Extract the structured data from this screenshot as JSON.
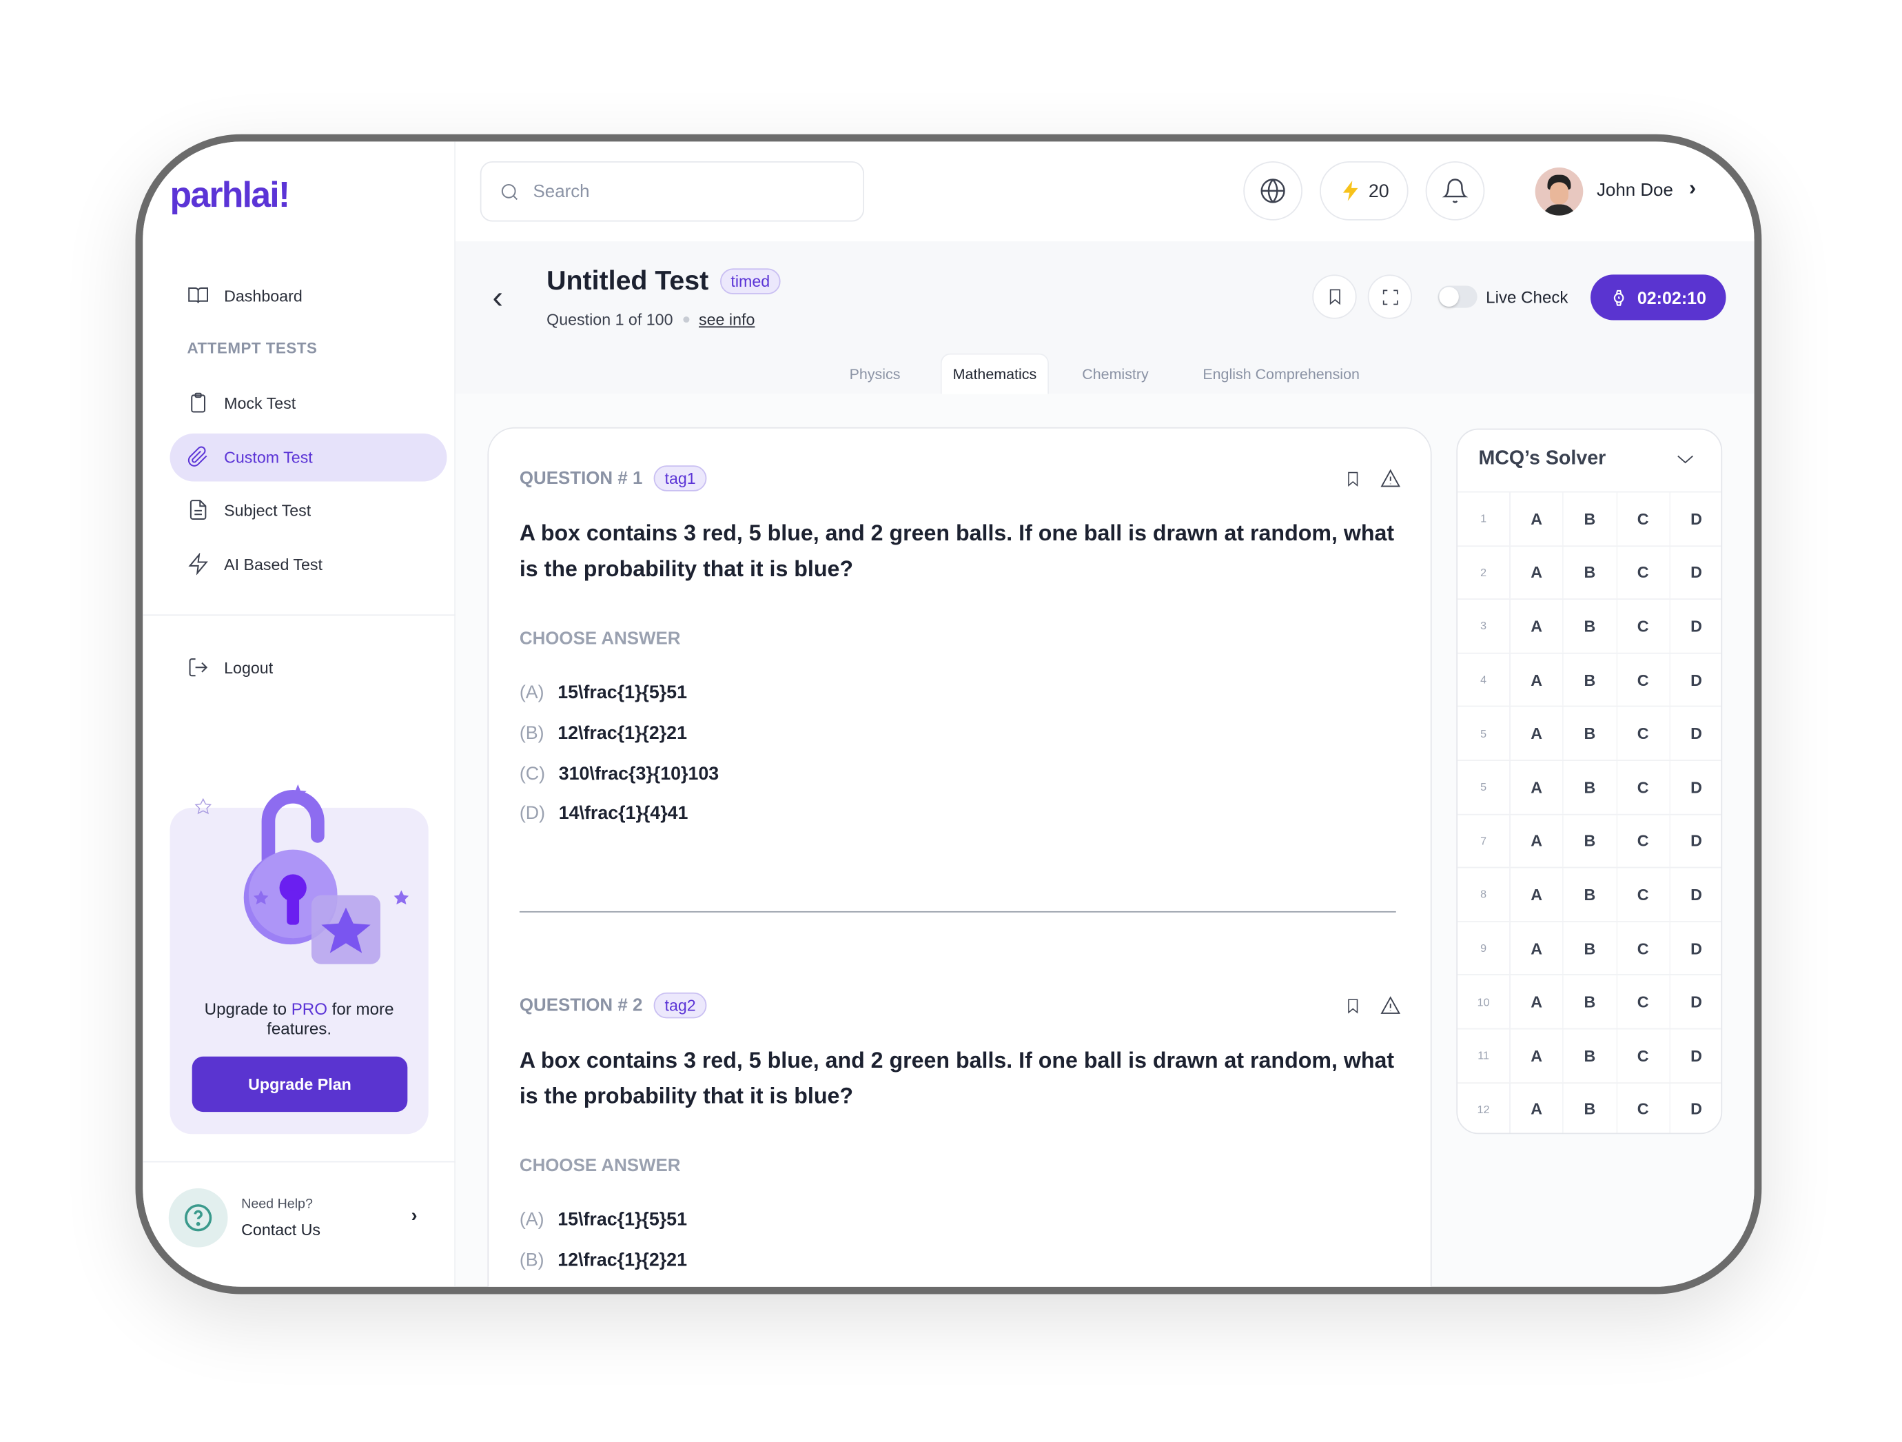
{
  "brand": {
    "logo": "parhlai!",
    "accent": "#5a34d0"
  },
  "sidebar": {
    "items": [
      {
        "label": "Dashboard",
        "icon": "book-open-icon"
      },
      {
        "label": "Mock Test",
        "icon": "clipboard-icon"
      },
      {
        "label": "Custom Test",
        "icon": "paperclip-icon",
        "active": true
      },
      {
        "label": "Subject Test",
        "icon": "document-icon"
      },
      {
        "label": "AI Based Test",
        "icon": "lightning-icon"
      }
    ],
    "section_label": "ATTEMPT TESTS",
    "logout": "Logout",
    "promo": {
      "text_before": "Upgrade to ",
      "text_pro": "PRO",
      "text_after": " for more features.",
      "button": "Upgrade Plan"
    },
    "help": {
      "line1": "Need Help?",
      "line2": "Contact Us"
    }
  },
  "topbar": {
    "search_placeholder": "Search",
    "points": "20",
    "user_name": "John Doe"
  },
  "test": {
    "title": "Untitled Test",
    "badge": "timed",
    "progress": "Question 1 of 100",
    "see_info": "see info",
    "live_check": "Live Check",
    "live_check_on": false,
    "timer": "02:02:10",
    "tabs": [
      "Physics",
      "Mathematics",
      "Chemistry",
      "English Comprehension"
    ],
    "active_tab": "Mathematics"
  },
  "questions": [
    {
      "label": "QUESTION # 1",
      "tag": "tag1",
      "text": "A box contains 3 red, 5 blue, and 2 green balls. If one ball is drawn at random, what is the probability that it is blue?",
      "choose": "CHOOSE ANSWER",
      "options": [
        {
          "l": "(A)",
          "t": "15\\frac{1}{5}51"
        },
        {
          "l": "(B)",
          "t": "12\\frac{1}{2}21"
        },
        {
          "l": "(C)",
          "t": "310\\frac{3}{10}103"
        },
        {
          "l": "(D)",
          "t": "14\\frac{1}{4}41"
        }
      ]
    },
    {
      "label": "QUESTION # 2",
      "tag": "tag2",
      "text": "A box contains 3 red, 5 blue, and 2 green balls. If one ball is drawn at random, what is the probability that it is blue?",
      "choose": "CHOOSE ANSWER",
      "options": [
        {
          "l": "(A)",
          "t": "15\\frac{1}{5}51"
        },
        {
          "l": "(B)",
          "t": "12\\frac{1}{2}21"
        }
      ]
    }
  ],
  "solver": {
    "title": "MCQ’s Solver",
    "rows": [
      "1",
      "2",
      "3",
      "4",
      "5",
      "5",
      "7",
      "8",
      "9",
      "10",
      "11",
      "12"
    ],
    "choices": [
      "A",
      "B",
      "C",
      "D"
    ]
  }
}
